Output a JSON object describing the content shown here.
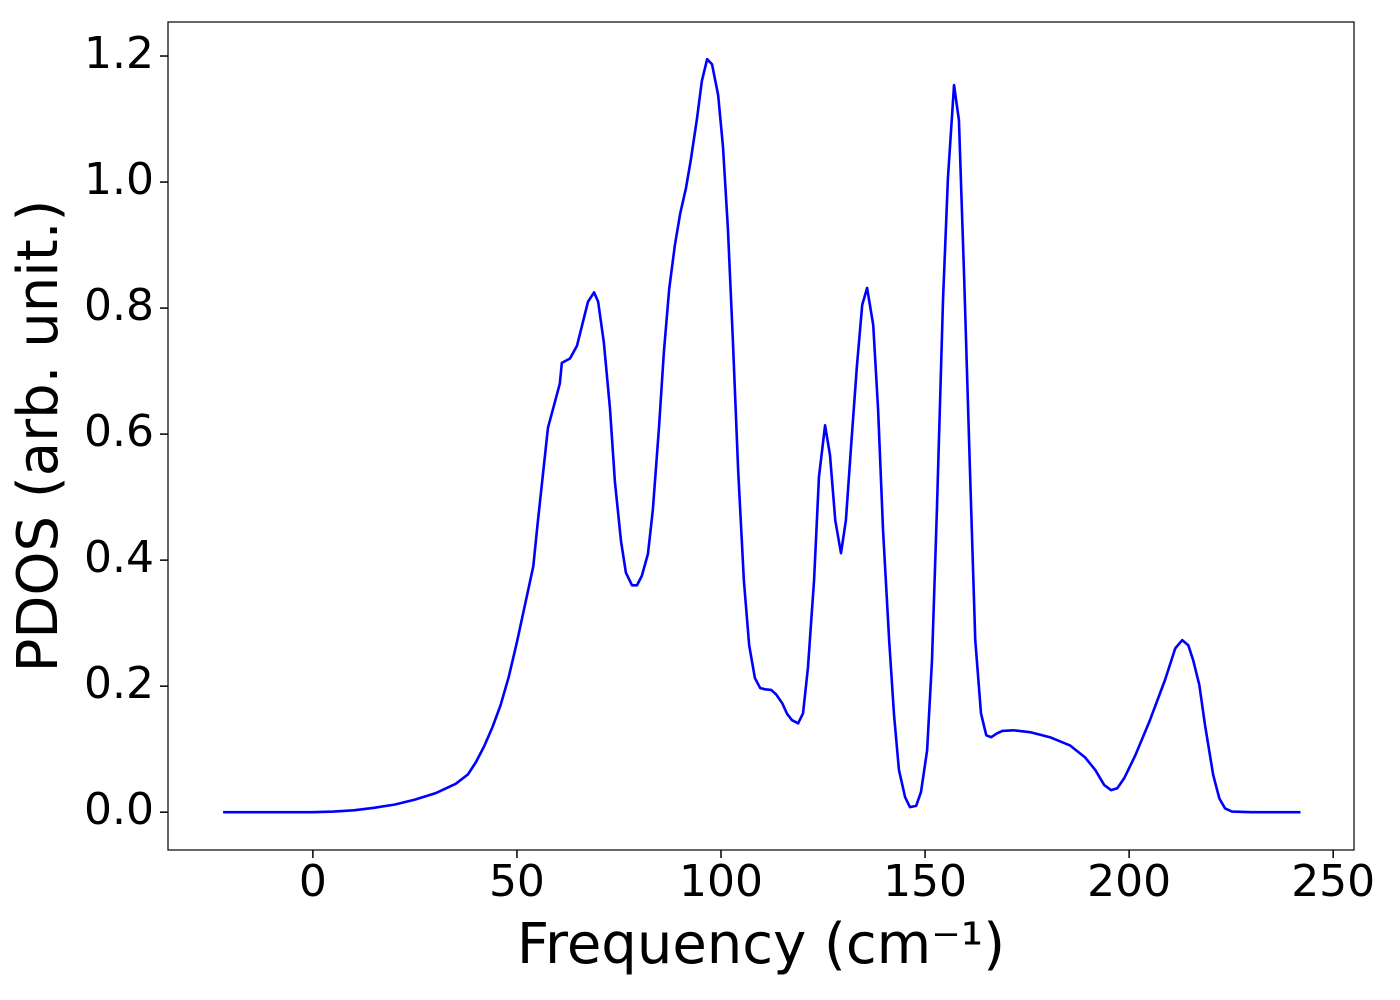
{
  "chart_data": {
    "type": "line",
    "xlabel": "Frequency (cm⁻¹)",
    "ylabel": "PDOS (arb. unit.)",
    "color": "#0000ff",
    "x": [
      -22,
      0,
      5,
      10,
      15,
      20,
      25,
      30,
      35,
      38,
      40,
      42,
      44,
      46,
      48,
      50,
      52,
      54,
      55.1,
      57.6,
      60.5,
      61,
      63,
      64.7,
      67.4,
      68.9,
      69.9,
      71.3,
      72.8,
      74,
      75.5,
      76.7,
      78.2,
      79.4,
      80.6,
      82.1,
      83.3,
      84.8,
      86,
      87.3,
      88.7,
      90,
      91.4,
      92.6,
      94.1,
      95.3,
      96.6,
      97.8,
      99.3,
      100.5,
      101.7,
      102.9,
      104.2,
      105.6,
      106.9,
      108.3,
      109.6,
      110.8,
      112.3,
      113.5,
      115,
      116.2,
      117.4,
      118.9,
      120.1,
      121.3,
      122.8,
      124,
      125.5,
      126.7,
      128,
      129.4,
      130.6,
      131.9,
      133.3,
      134.6,
      135.8,
      137.3,
      138.5,
      139.7,
      141.2,
      142.4,
      143.6,
      145.1,
      146.3,
      147.8,
      149,
      150.5,
      151.7,
      152.9,
      154.4,
      155.6,
      157.1,
      158.3,
      159.6,
      161,
      162.3,
      163.7,
      165,
      166.2,
      167.6,
      168.9,
      171.6,
      175.7,
      180.6,
      185.5,
      189.2,
      191.7,
      193.9,
      195.6,
      197.1,
      198.8,
      201.5,
      205.1,
      208.8,
      211.3,
      213,
      214.5,
      215.7,
      217.2,
      218.6,
      220.6,
      222.1,
      223.5,
      225.2,
      230,
      242
    ],
    "values": [
      0,
      0,
      0.001,
      0.003,
      0.007,
      0.012,
      0.02,
      0.03,
      0.045,
      0.06,
      0.08,
      0.105,
      0.135,
      0.17,
      0.215,
      0.27,
      0.33,
      0.39,
      0.46,
      0.61,
      0.68,
      0.713,
      0.72,
      0.74,
      0.81,
      0.825,
      0.81,
      0.745,
      0.64,
      0.525,
      0.43,
      0.38,
      0.36,
      0.36,
      0.375,
      0.41,
      0.48,
      0.61,
      0.73,
      0.83,
      0.9,
      0.95,
      0.99,
      1.035,
      1.1,
      1.16,
      1.195,
      1.187,
      1.138,
      1.055,
      0.925,
      0.75,
      0.543,
      0.368,
      0.265,
      0.213,
      0.197,
      0.195,
      0.194,
      0.187,
      0.173,
      0.156,
      0.146,
      0.141,
      0.157,
      0.229,
      0.368,
      0.532,
      0.614,
      0.567,
      0.463,
      0.411,
      0.463,
      0.583,
      0.708,
      0.805,
      0.832,
      0.773,
      0.638,
      0.448,
      0.273,
      0.154,
      0.067,
      0.024,
      0.008,
      0.01,
      0.032,
      0.098,
      0.241,
      0.479,
      0.813,
      1.006,
      1.154,
      1.098,
      0.844,
      0.543,
      0.273,
      0.157,
      0.122,
      0.119,
      0.125,
      0.129,
      0.13,
      0.127,
      0.119,
      0.106,
      0.087,
      0.067,
      0.043,
      0.035,
      0.038,
      0.054,
      0.09,
      0.146,
      0.21,
      0.26,
      0.273,
      0.265,
      0.241,
      0.202,
      0.138,
      0.059,
      0.022,
      0.006,
      0.001,
      0,
      0
    ],
    "xlim": [
      -35.5,
      255.1
    ],
    "ylim": [
      -0.06,
      1.254
    ],
    "xticks": [
      0,
      50,
      100,
      150,
      200,
      250
    ],
    "yticks": [
      {
        "value": 0,
        "label": "0.0"
      },
      {
        "value": 0.2,
        "label": "0.2"
      },
      {
        "value": 0.4,
        "label": "0.4"
      },
      {
        "value": 0.6,
        "label": "0.6"
      },
      {
        "value": 0.8,
        "label": "0.8"
      },
      {
        "value": 1.0,
        "label": "1.0"
      },
      {
        "value": 1.2,
        "label": "1.2"
      }
    ]
  }
}
